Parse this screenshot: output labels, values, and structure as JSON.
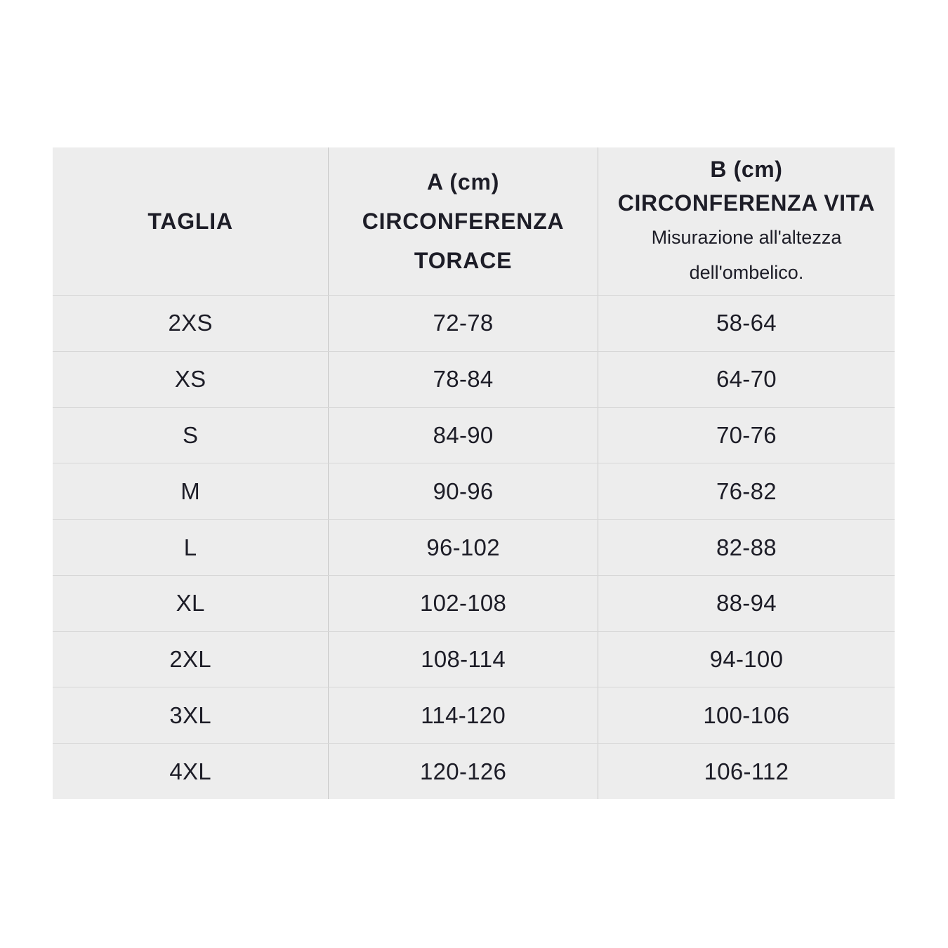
{
  "header": {
    "col_taglia": {
      "title": "TAGLIA"
    },
    "col_a": {
      "line1": "A (cm)",
      "line2": "CIRCONFERENZA",
      "line3": "TORACE"
    },
    "col_b": {
      "line1": "B (cm)",
      "line2": "CIRCONFERENZA VITA",
      "note": "Misurazione all'altezza dell'ombelico."
    }
  },
  "rows": [
    {
      "taglia": "2XS",
      "torace": "72-78",
      "vita": "58-64"
    },
    {
      "taglia": "XS",
      "torace": "78-84",
      "vita": "64-70"
    },
    {
      "taglia": "S",
      "torace": "84-90",
      "vita": "70-76"
    },
    {
      "taglia": "M",
      "torace": "90-96",
      "vita": "76-82"
    },
    {
      "taglia": "L",
      "torace": "96-102",
      "vita": "82-88"
    },
    {
      "taglia": "XL",
      "torace": "102-108",
      "vita": "88-94"
    },
    {
      "taglia": "2XL",
      "torace": "108-114",
      "vita": "94-100"
    },
    {
      "taglia": "3XL",
      "torace": "114-120",
      "vita": "100-106"
    },
    {
      "taglia": "4XL",
      "torace": "120-126",
      "vita": "106-112"
    }
  ],
  "colors": {
    "page_background": "#ffffff",
    "table_background": "#ededed",
    "text": "#1d1d27",
    "row_divider": "#d7d7d7",
    "column_divider": "#c9c9c9"
  },
  "chart_data": {
    "type": "table",
    "title": "",
    "columns": [
      "TAGLIA",
      "A (cm) CIRCONFERENZA TORACE",
      "B (cm) CIRCONFERENZA VITA Misurazione all'altezza dell'ombelico."
    ],
    "rows": [
      [
        "2XS",
        "72-78",
        "58-64"
      ],
      [
        "XS",
        "78-84",
        "64-70"
      ],
      [
        "S",
        "84-90",
        "70-76"
      ],
      [
        "M",
        "90-96",
        "76-82"
      ],
      [
        "L",
        "96-102",
        "82-88"
      ],
      [
        "XL",
        "102-108",
        "88-94"
      ],
      [
        "2XL",
        "108-114",
        "94-100"
      ],
      [
        "3XL",
        "114-120",
        "100-106"
      ],
      [
        "4XL",
        "120-126",
        "106-112"
      ]
    ]
  }
}
